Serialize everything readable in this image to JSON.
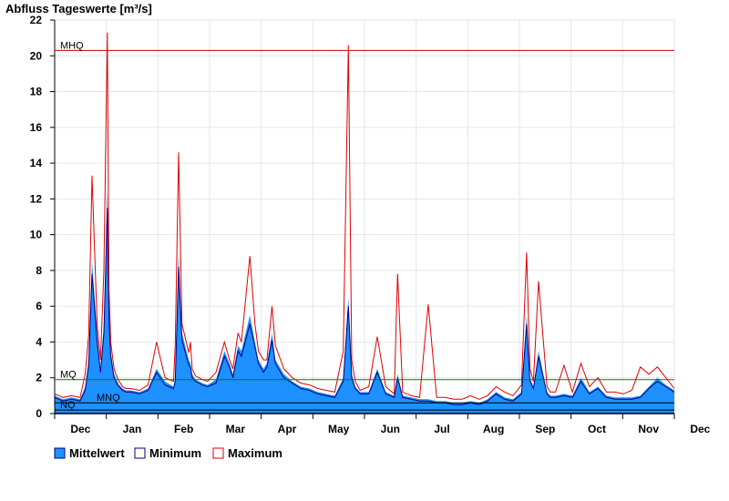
{
  "chart_data": {
    "type": "area",
    "title": "Abfluss Tageswerte [m³/s]",
    "x_ticks": [
      "Dec",
      "Jan",
      "Feb",
      "Mar",
      "Apr",
      "May",
      "Jun",
      "Jul",
      "Aug",
      "Sep",
      "Oct",
      "Nov",
      "Dec"
    ],
    "ylim": [
      0,
      22
    ],
    "y_ticks": [
      0,
      2,
      4,
      6,
      8,
      10,
      12,
      14,
      16,
      18,
      20,
      22
    ],
    "grid": true,
    "legend_position": "bottom-left",
    "reference_lines": [
      {
        "label": "MHQ",
        "value": 20.3,
        "color": "#cc0000"
      },
      {
        "label": "MQ",
        "value": 1.9,
        "color": "#008000"
      },
      {
        "label": "MNQ",
        "value": 0.6,
        "color": "#000000"
      },
      {
        "label": "NQ",
        "value": 0.2,
        "color": "#000000"
      }
    ],
    "x_day": [
      0,
      5,
      10,
      15,
      18,
      20,
      22,
      25,
      27,
      29,
      31,
      32,
      33,
      35,
      36,
      37,
      38,
      40,
      42,
      45,
      50,
      55,
      60,
      65,
      70,
      71,
      73,
      75,
      79,
      80,
      81,
      83,
      85,
      87,
      90,
      95,
      100,
      103,
      105,
      108,
      110,
      115,
      118,
      120,
      123,
      125,
      128,
      130,
      135,
      140,
      145,
      150,
      155,
      160,
      165,
      170,
      173,
      175,
      177,
      180,
      185,
      190,
      195,
      200,
      202,
      205,
      210,
      215,
      220,
      225,
      230,
      235,
      240,
      245,
      250,
      255,
      260,
      265,
      270,
      275,
      278,
      280,
      282,
      285,
      290,
      292,
      295,
      300,
      305,
      310,
      315,
      320,
      325,
      330,
      335,
      340,
      345,
      350,
      355,
      360,
      365
    ],
    "series": [
      {
        "name": "Mittelwert",
        "color": "#1e90ff",
        "values": [
          1.0,
          0.8,
          0.9,
          0.8,
          1.5,
          3.0,
          8.5,
          4.5,
          2.5,
          5.0,
          12.5,
          6.0,
          3.5,
          2.2,
          2.0,
          1.8,
          1.6,
          1.4,
          1.3,
          1.3,
          1.2,
          1.4,
          2.5,
          1.8,
          1.5,
          2.0,
          9.0,
          4.5,
          3.0,
          2.8,
          2.2,
          1.9,
          1.8,
          1.7,
          1.6,
          1.9,
          3.5,
          2.8,
          2.2,
          3.8,
          3.5,
          5.5,
          4.0,
          3.0,
          2.5,
          2.8,
          4.5,
          3.0,
          2.2,
          1.8,
          1.5,
          1.4,
          1.2,
          1.1,
          1.0,
          2.0,
          6.5,
          2.2,
          1.5,
          1.2,
          1.2,
          2.5,
          1.2,
          1.0,
          2.2,
          1.0,
          0.9,
          0.8,
          0.8,
          0.7,
          0.7,
          0.6,
          0.6,
          0.7,
          0.6,
          0.8,
          1.2,
          0.9,
          0.8,
          1.2,
          5.5,
          2.0,
          1.5,
          3.5,
          1.2,
          1.0,
          1.0,
          1.1,
          1.0,
          2.0,
          1.2,
          1.5,
          1.0,
          0.9,
          0.9,
          0.9,
          1.0,
          1.5,
          2.0,
          1.6,
          1.3
        ]
      },
      {
        "name": "Minimum",
        "color": "#000080",
        "values": [
          0.9,
          0.7,
          0.8,
          0.7,
          1.3,
          2.7,
          7.8,
          4.0,
          2.3,
          4.5,
          11.5,
          5.4,
          3.2,
          2.0,
          1.8,
          1.6,
          1.5,
          1.3,
          1.2,
          1.2,
          1.1,
          1.3,
          2.3,
          1.6,
          1.4,
          1.8,
          8.2,
          4.1,
          2.7,
          2.6,
          2.0,
          1.8,
          1.7,
          1.6,
          1.5,
          1.7,
          3.2,
          2.6,
          2.0,
          3.5,
          3.2,
          5.0,
          3.7,
          2.8,
          2.3,
          2.6,
          4.1,
          2.8,
          2.0,
          1.7,
          1.4,
          1.3,
          1.1,
          1.0,
          0.9,
          1.8,
          6.0,
          2.0,
          1.4,
          1.1,
          1.1,
          2.3,
          1.1,
          0.9,
          2.0,
          0.9,
          0.8,
          0.7,
          0.7,
          0.6,
          0.6,
          0.5,
          0.5,
          0.6,
          0.5,
          0.7,
          1.1,
          0.8,
          0.7,
          1.1,
          5.0,
          1.8,
          1.4,
          3.2,
          1.1,
          0.9,
          0.9,
          1.0,
          0.9,
          1.8,
          1.1,
          1.4,
          0.9,
          0.8,
          0.8,
          0.8,
          0.9,
          1.4,
          1.8,
          1.5,
          1.2
        ]
      },
      {
        "name": "Maximum",
        "color": "#e00000",
        "values": [
          1.1,
          0.9,
          1.0,
          0.9,
          2.2,
          4.4,
          13.3,
          5.0,
          3.0,
          8.0,
          21.3,
          7.0,
          4.0,
          2.5,
          2.2,
          2.0,
          1.8,
          1.5,
          1.4,
          1.4,
          1.3,
          1.6,
          4.0,
          2.0,
          1.8,
          3.8,
          14.6,
          5.0,
          3.4,
          4.0,
          2.5,
          2.1,
          2.0,
          1.9,
          1.8,
          2.3,
          4.0,
          3.0,
          2.5,
          4.5,
          4.0,
          8.8,
          5.0,
          3.5,
          3.0,
          3.0,
          6.0,
          3.8,
          2.5,
          2.0,
          1.7,
          1.6,
          1.4,
          1.3,
          1.2,
          3.5,
          20.6,
          3.0,
          1.8,
          1.3,
          1.5,
          4.3,
          1.5,
          1.1,
          7.8,
          1.2,
          1.0,
          0.9,
          6.1,
          0.9,
          0.9,
          0.8,
          0.8,
          1.0,
          0.8,
          1.0,
          1.5,
          1.2,
          1.0,
          1.6,
          9.0,
          2.5,
          1.8,
          7.4,
          1.5,
          1.2,
          1.2,
          2.7,
          1.2,
          2.8,
          1.5,
          2.0,
          1.2,
          1.2,
          1.1,
          1.3,
          2.6,
          2.2,
          2.6,
          2.0,
          1.4
        ]
      }
    ]
  }
}
